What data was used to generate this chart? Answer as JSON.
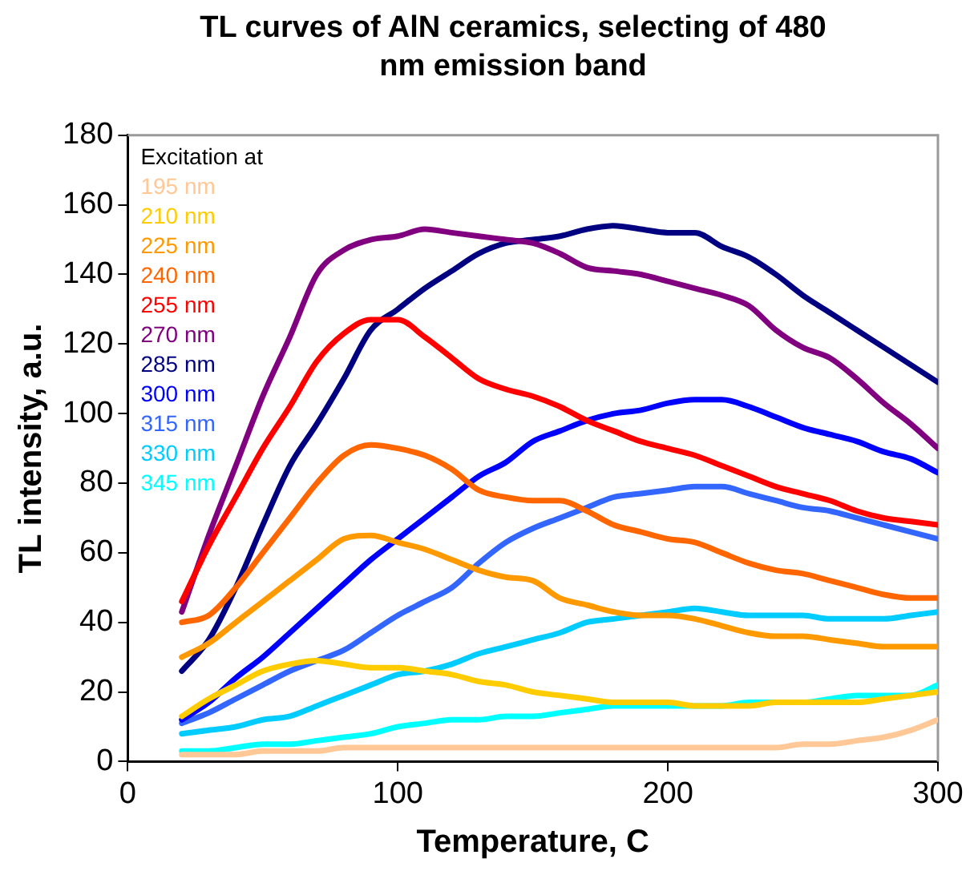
{
  "chart_data": {
    "type": "line",
    "title": "TL curves of AlN ceramics, selecting of 480 nm emission band",
    "xlabel": "Temperature, C",
    "ylabel": "TL intensity, a.u.",
    "legend_title": "Excitation at",
    "legend": "top left",
    "grid": false,
    "marker": "none",
    "line_style": "solid",
    "x": [
      20,
      30,
      40,
      50,
      60,
      70,
      80,
      90,
      100,
      110,
      120,
      130,
      140,
      150,
      160,
      170,
      180,
      190,
      200,
      210,
      220,
      230,
      240,
      250,
      260,
      270,
      280,
      290,
      300
    ],
    "xlim": [
      0,
      300
    ],
    "xticks": [
      0,
      100,
      200,
      300
    ],
    "ylim": [
      0,
      180
    ],
    "yticks": [
      0,
      20,
      40,
      60,
      80,
      100,
      120,
      140,
      160,
      180
    ],
    "series": [
      {
        "name": "195 nm",
        "color": "#ffc896",
        "values": [
          2,
          2,
          2,
          3,
          3,
          3,
          4,
          4,
          4,
          4,
          4,
          4,
          4,
          4,
          4,
          4,
          4,
          4,
          4,
          4,
          4,
          4,
          4,
          5,
          5,
          6,
          7,
          9,
          12
        ]
      },
      {
        "name": "210 nm",
        "color": "#ffcc00",
        "values": [
          13,
          18,
          22,
          26,
          28,
          29,
          28,
          27,
          27,
          26,
          25,
          23,
          22,
          20,
          19,
          18,
          17,
          17,
          17,
          16,
          16,
          16,
          17,
          17,
          17,
          17,
          18,
          19,
          20
        ]
      },
      {
        "name": "225 nm",
        "color": "#ff9900",
        "values": [
          30,
          34,
          40,
          46,
          52,
          58,
          64,
          65,
          63,
          61,
          58,
          55,
          53,
          52,
          47,
          45,
          43,
          42,
          42,
          41,
          39,
          37,
          36,
          36,
          35,
          34,
          33,
          33,
          33
        ]
      },
      {
        "name": "240 nm",
        "color": "#ff6600",
        "values": [
          40,
          42,
          50,
          60,
          70,
          80,
          88,
          91,
          90,
          88,
          84,
          78,
          76,
          75,
          75,
          72,
          68,
          66,
          64,
          63,
          60,
          57,
          55,
          54,
          52,
          50,
          48,
          47,
          47
        ]
      },
      {
        "name": "255 nm",
        "color": "#ff0000",
        "values": [
          46,
          62,
          76,
          90,
          102,
          115,
          123,
          127,
          127,
          122,
          116,
          110,
          107,
          105,
          102,
          98,
          95,
          92,
          90,
          88,
          85,
          82,
          79,
          77,
          75,
          72,
          70,
          69,
          68
        ]
      },
      {
        "name": "270 nm",
        "color": "#800080",
        "values": [
          43,
          65,
          85,
          105,
          122,
          140,
          147,
          150,
          151,
          153,
          152,
          151,
          150,
          149,
          146,
          142,
          141,
          140,
          138,
          136,
          134,
          131,
          124,
          119,
          116,
          110,
          103,
          97,
          90
        ]
      },
      {
        "name": "285 nm",
        "color": "#000080",
        "values": [
          26,
          35,
          50,
          68,
          85,
          97,
          110,
          124,
          130,
          136,
          141,
          146,
          149,
          150,
          151,
          153,
          154,
          153,
          152,
          152,
          148,
          145,
          140,
          134,
          129,
          124,
          119,
          114,
          109
        ]
      },
      {
        "name": "300 nm",
        "color": "#0000ff",
        "values": [
          12,
          17,
          24,
          30,
          37,
          44,
          51,
          58,
          64,
          70,
          76,
          82,
          86,
          92,
          95,
          98,
          100,
          101,
          103,
          104,
          104,
          102,
          99,
          96,
          94,
          92,
          89,
          87,
          83
        ]
      },
      {
        "name": "315 nm",
        "color": "#3366ff",
        "values": [
          11,
          14,
          18,
          22,
          26,
          29,
          32,
          37,
          42,
          46,
          50,
          57,
          63,
          67,
          70,
          73,
          76,
          77,
          78,
          79,
          79,
          77,
          75,
          73,
          72,
          70,
          68,
          66,
          64
        ]
      },
      {
        "name": "330 nm",
        "color": "#00ccff",
        "values": [
          8,
          9,
          10,
          12,
          13,
          16,
          19,
          22,
          25,
          26,
          28,
          31,
          33,
          35,
          37,
          40,
          41,
          42,
          43,
          44,
          43,
          42,
          42,
          42,
          41,
          41,
          41,
          42,
          43
        ]
      },
      {
        "name": "345 nm",
        "color": "#00ffff",
        "values": [
          3,
          3,
          4,
          5,
          5,
          6,
          7,
          8,
          10,
          11,
          12,
          12,
          13,
          13,
          14,
          15,
          16,
          16,
          16,
          16,
          16,
          17,
          17,
          17,
          18,
          19,
          19,
          19,
          22
        ]
      }
    ]
  }
}
